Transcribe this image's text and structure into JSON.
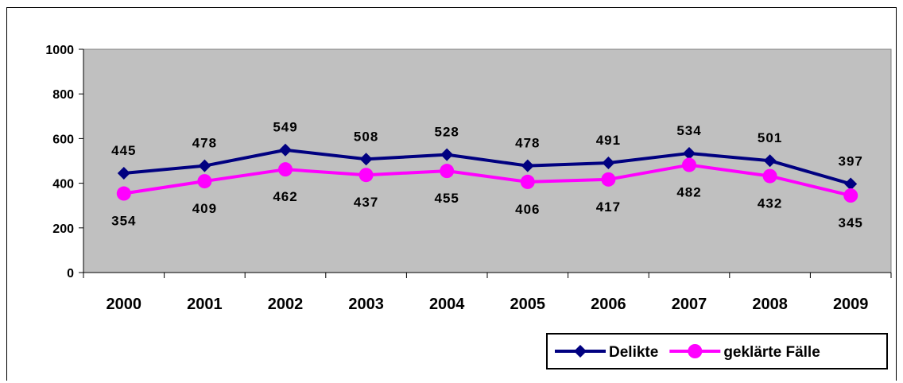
{
  "chart_data": {
    "type": "line",
    "categories": [
      "2000",
      "2001",
      "2002",
      "2003",
      "2004",
      "2005",
      "2006",
      "2007",
      "2008",
      "2009"
    ],
    "ylim": [
      0,
      1000
    ],
    "yticks": [
      0,
      200,
      400,
      600,
      800,
      1000
    ],
    "grid": false,
    "plot_background": "#C0C0C0",
    "legend_position": "bottom-right",
    "series": [
      {
        "name": "Delikte",
        "values": [
          445,
          478,
          549,
          508,
          528,
          478,
          491,
          534,
          501,
          397
        ],
        "color": "#000080",
        "marker": "diamond",
        "label_position": "above"
      },
      {
        "name": "geklärte Fälle",
        "values": [
          354,
          409,
          462,
          437,
          455,
          406,
          417,
          482,
          432,
          345
        ],
        "color": "#FF00FF",
        "marker": "circle",
        "label_position": "below"
      }
    ]
  }
}
